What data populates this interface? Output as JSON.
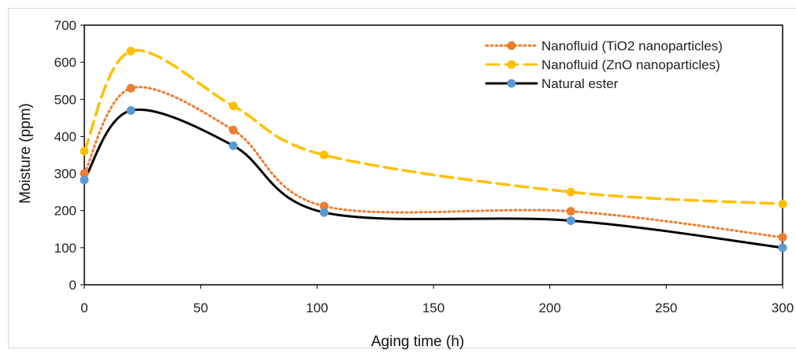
{
  "chart_data": {
    "type": "line",
    "title": "",
    "xlabel": "Aging time (h)",
    "ylabel": "Moisture (ppm)",
    "xlim": [
      0,
      300
    ],
    "ylim": [
      0,
      700
    ],
    "xticks": [
      "0",
      "50",
      "100",
      "150",
      "200",
      "250",
      "300"
    ],
    "yticks": [
      "0",
      "100",
      "200",
      "300",
      "400",
      "500",
      "600",
      "700"
    ],
    "grid": false,
    "legend_position": "top-right",
    "series": [
      {
        "name": "Nanofluid (TiO2 nanoparticles)",
        "style": "dotted",
        "color": "#ed7d31",
        "x": [
          0,
          20,
          64,
          103,
          209,
          300
        ],
        "y": [
          300,
          530,
          417,
          212,
          198,
          128
        ]
      },
      {
        "name": "Nanofluid (ZnO nanoparticles)",
        "style": "dashed",
        "color": "#ffc000",
        "x": [
          0,
          20,
          64,
          103,
          209,
          300
        ],
        "y": [
          360,
          630,
          482,
          350,
          250,
          218
        ]
      },
      {
        "name": "Natural ester",
        "style": "solid",
        "color": "#000000",
        "marker_color": "#5b9bd5",
        "x": [
          0,
          20,
          64,
          103,
          209,
          300
        ],
        "y": [
          283,
          470,
          375,
          195,
          173,
          100
        ]
      }
    ]
  }
}
